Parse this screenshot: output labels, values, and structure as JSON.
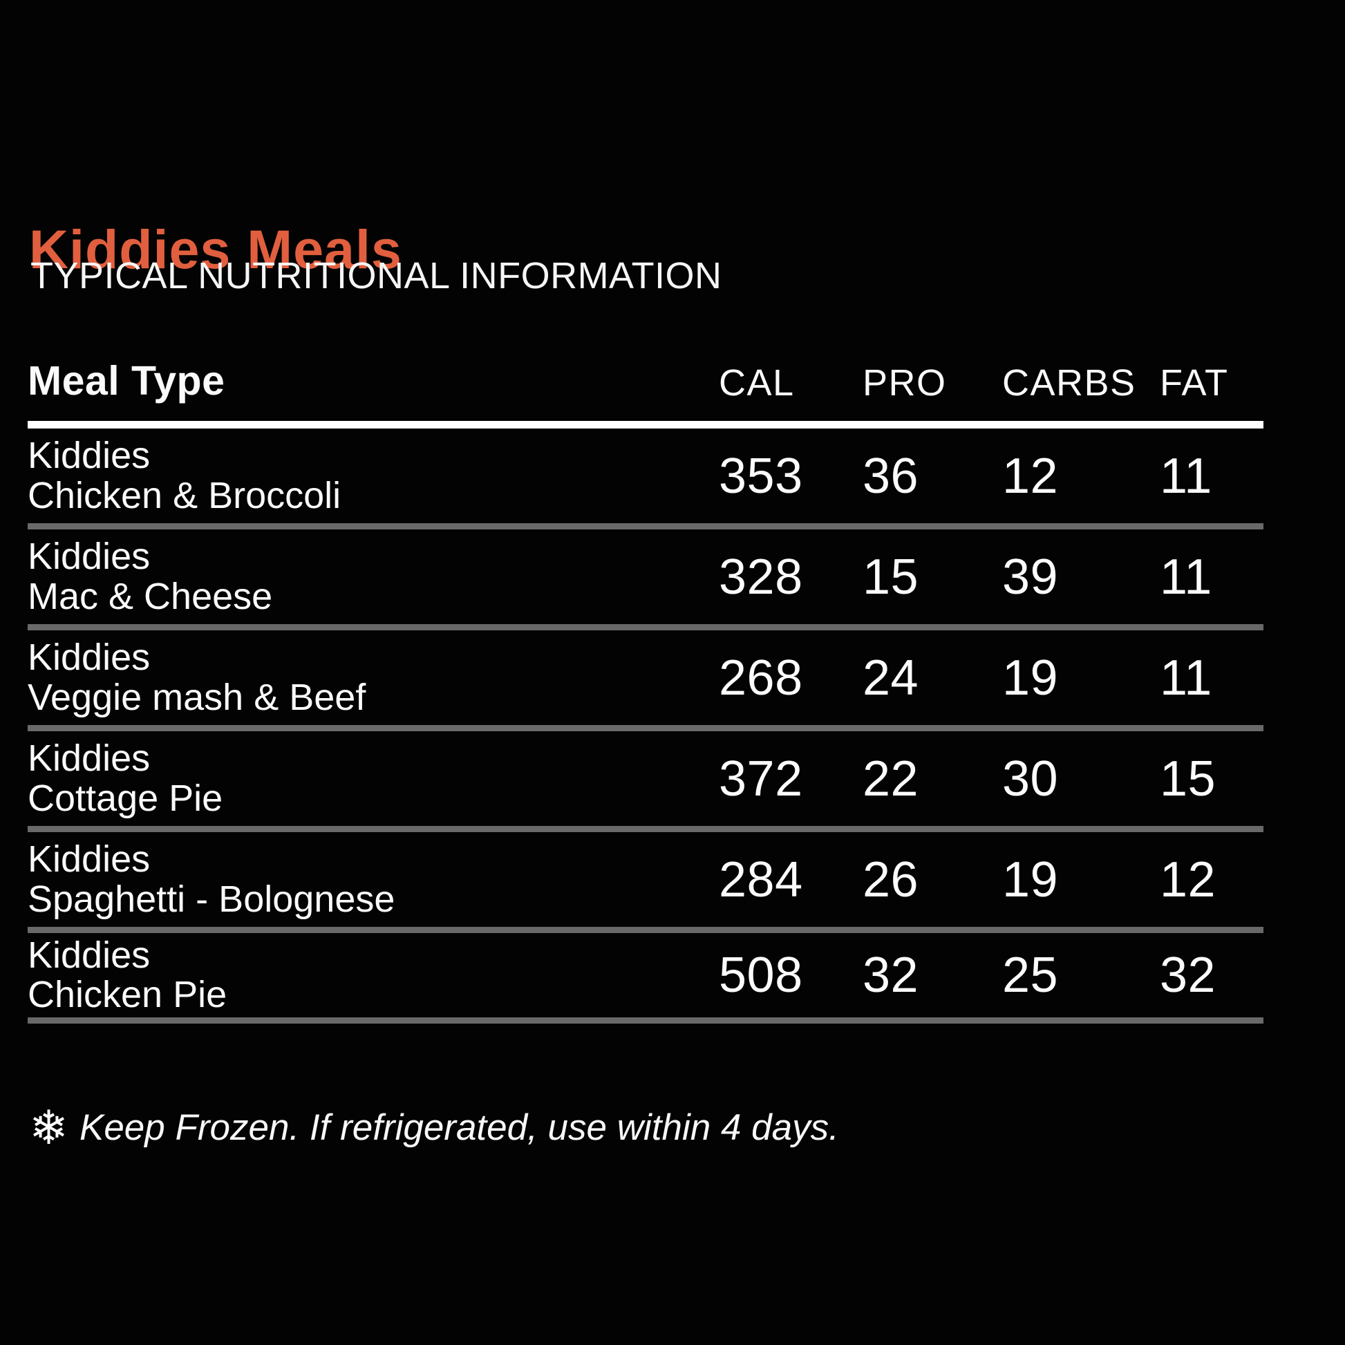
{
  "page": {
    "title": "Kiddies Meals",
    "subtitle": "TYPICAL NUTRITIONAL INFORMATION"
  },
  "colors": {
    "accent": "#E15F3E",
    "background": "#030303",
    "text": "#FAFAFA",
    "header_rule": "#FFFFFF",
    "row_rule": "#696969"
  },
  "table": {
    "headers": {
      "meal": "Meal Type",
      "cal": "CAL",
      "pro": "PRO",
      "carbs": "CARBS",
      "fat": "FAT"
    },
    "rows": [
      {
        "meal_line1": "Kiddies",
        "meal_line2": "Chicken & Broccoli",
        "cal": "353",
        "pro": "36",
        "carbs": "12",
        "fat": "11"
      },
      {
        "meal_line1": "Kiddies",
        "meal_line2": "Mac & Cheese",
        "cal": "328",
        "pro": "15",
        "carbs": "39",
        "fat": "11"
      },
      {
        "meal_line1": "Kiddies",
        "meal_line2": "Veggie mash & Beef",
        "cal": "268",
        "pro": "24",
        "carbs": "19",
        "fat": "11"
      },
      {
        "meal_line1": "Kiddies",
        "meal_line2": "Cottage Pie",
        "cal": "372",
        "pro": "22",
        "carbs": "30",
        "fat": "15"
      },
      {
        "meal_line1": "Kiddies",
        "meal_line2": "Spaghetti - Bolognese",
        "cal": "284",
        "pro": "26",
        "carbs": "19",
        "fat": "12"
      },
      {
        "meal_line1": "Kiddies",
        "meal_line2": "Chicken Pie",
        "cal": "508",
        "pro": "32",
        "carbs": "25",
        "fat": "32"
      }
    ]
  },
  "footer": {
    "snowflake_icon": "❄",
    "note": "Keep Frozen. If refrigerated, use within 4 days."
  }
}
